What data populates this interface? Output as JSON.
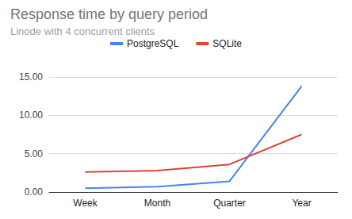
{
  "chart_data": {
    "type": "line",
    "title": "Response time by query period",
    "subtitle": "Linode with 4 concurrent clients",
    "categories": [
      "Week",
      "Month",
      "Quarter",
      "Year"
    ],
    "series": [
      {
        "name": "PostgreSQL",
        "color": "#4285f4",
        "values": [
          0.5,
          0.7,
          1.4,
          13.8
        ]
      },
      {
        "name": "SQLite",
        "color": "#db4437",
        "values": [
          2.6,
          2.8,
          3.6,
          7.5
        ]
      }
    ],
    "ylim": [
      0,
      15
    ],
    "yticks": [
      {
        "value": 0,
        "label": "0.00"
      },
      {
        "value": 5,
        "label": "5.00"
      },
      {
        "value": 10,
        "label": "10.00"
      },
      {
        "value": 15,
        "label": "15.00"
      }
    ],
    "grid": true,
    "legend": "top"
  }
}
